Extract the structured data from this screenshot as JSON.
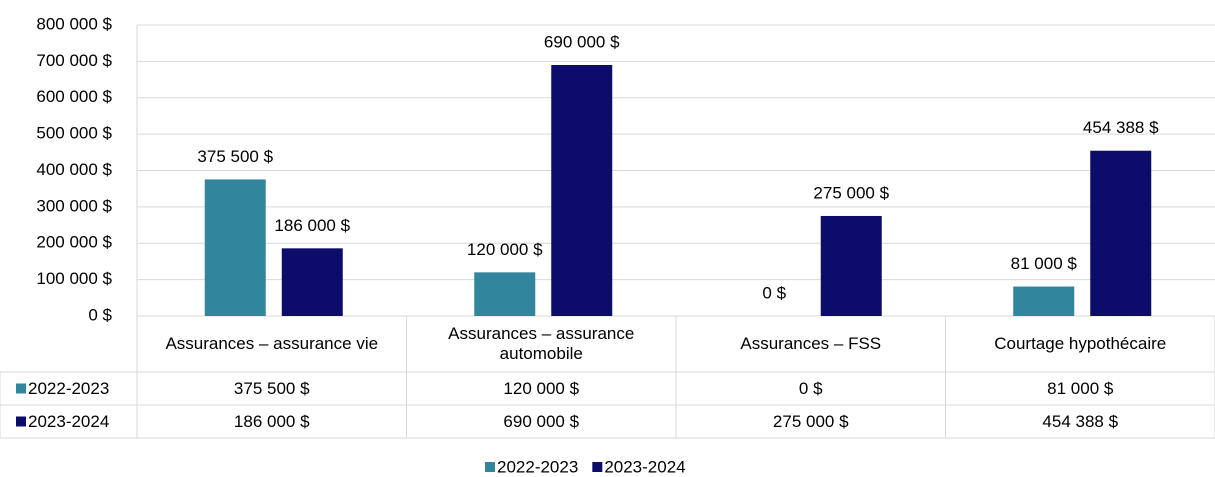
{
  "chart_data": {
    "type": "bar",
    "categories": [
      "Assurances – assurance vie",
      "Assurances – assurance automobile",
      "Assurances – FSS",
      "Courtage hypothécaire"
    ],
    "series": [
      {
        "name": "2022-2023",
        "color": "#31859c",
        "values": [
          375500,
          120000,
          0,
          81000
        ],
        "value_labels": [
          "375 500  $",
          "120 000  $",
          "0 $",
          "81 000  $"
        ],
        "table_labels": [
          "375 500 $",
          "120 000 $",
          "0 $",
          "81 000 $"
        ]
      },
      {
        "name": "2023-2024",
        "color": "#0c0c6b",
        "values": [
          186000,
          690000,
          275000,
          454388
        ],
        "value_labels": [
          "186 000  $",
          "690 000  $",
          "275 000  $",
          "454 388  $"
        ],
        "table_labels": [
          "186 000 $",
          "690 000 $",
          "275 000 $",
          "454 388 $"
        ]
      }
    ],
    "ylim": [
      0,
      800000
    ],
    "yticks": [
      {
        "value": 0,
        "label": "0 $"
      },
      {
        "value": 100000,
        "label": "100 000  $"
      },
      {
        "value": 200000,
        "label": "200 000  $"
      },
      {
        "value": 300000,
        "label": "300 000  $"
      },
      {
        "value": 400000,
        "label": "400 000  $"
      },
      {
        "value": 500000,
        "label": "500 000  $"
      },
      {
        "value": 600000,
        "label": "600 000  $"
      },
      {
        "value": 700000,
        "label": "700 000  $"
      },
      {
        "value": 800000,
        "label": "800 000  $"
      }
    ],
    "grid": true,
    "legend": "bottom"
  }
}
